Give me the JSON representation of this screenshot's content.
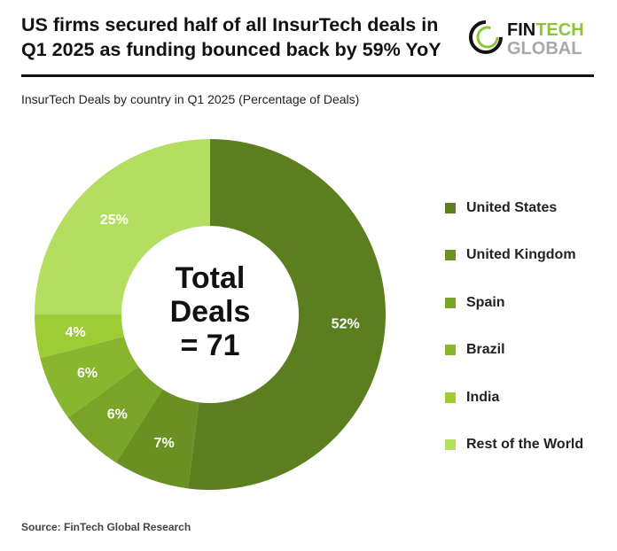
{
  "title": "US firms secured half of all InsurTech deals in Q1 2025 as funding bounced back by 59% YoY",
  "logo": {
    "text_line1_dark": "FIN",
    "text_line1_green": "TECH",
    "text_line2": "GLOBAL"
  },
  "source": "Source: FinTech Global Research",
  "chart_data": {
    "type": "pie",
    "donut": true,
    "title": "InsurTech Deals by country in Q1 2025 (Percentage of Deals)",
    "center_label": [
      "Total",
      "Deals",
      "= 71"
    ],
    "legend_position": "right",
    "categories": [
      "United States",
      "United Kingdom",
      "Spain",
      "Brazil",
      "India",
      "Rest of the World"
    ],
    "values": [
      52,
      7,
      6,
      6,
      4,
      25
    ],
    "data_labels": [
      "52%",
      "7%",
      "6%",
      "6%",
      "4%",
      "25%"
    ],
    "colors": [
      "#5b7e1e",
      "#6a9023",
      "#79a428",
      "#88b62e",
      "#9dcc35",
      "#b4de5f"
    ]
  }
}
